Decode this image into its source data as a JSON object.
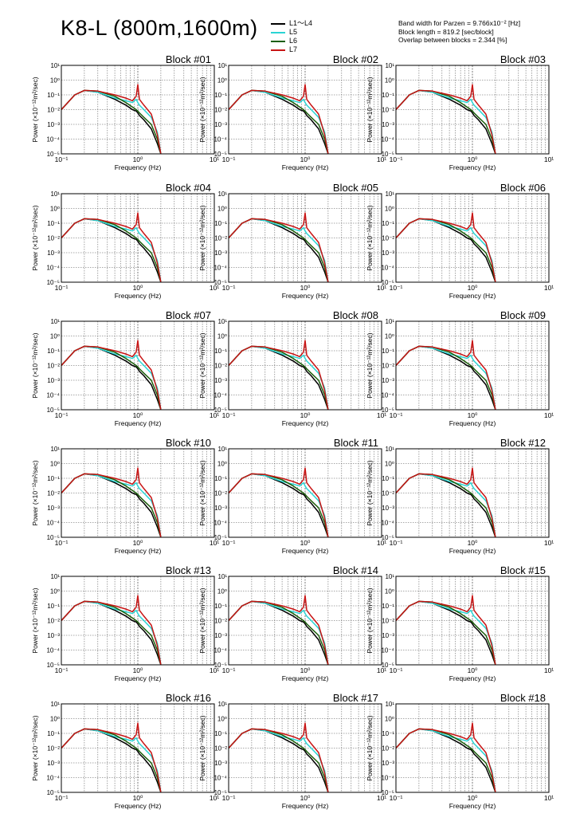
{
  "title": "K8-L (800m,1600m)",
  "legend": [
    {
      "label": "L1～L4",
      "color": "#000000"
    },
    {
      "label": "L5",
      "color": "#2ad4d4"
    },
    {
      "label": "L6",
      "color": "#1b5e0a"
    },
    {
      "label": "L7",
      "color": "#c81414"
    }
  ],
  "info": [
    "Band width for Parzen = 9.766x10⁻² [Hz]",
    "Block length = 819.2 [sec/block]",
    "Overlap between blocks = 2.344 [%]"
  ],
  "axis": {
    "xlabel": "Frequency (Hz)",
    "ylabel": "Power (×10⁻¹²m²/sec)",
    "xticks": [
      "10⁻¹",
      "10⁰",
      "10¹"
    ],
    "yticks": [
      "10¹",
      "10⁰",
      "10⁻¹",
      "10⁻²",
      "10⁻³",
      "10⁻⁴",
      "10⁻⁵"
    ]
  },
  "chart_data": {
    "type": "line",
    "xscale": "log",
    "yscale": "log",
    "xlim": [
      0.1,
      10
    ],
    "ylim": [
      1e-05,
      10
    ],
    "grid": true,
    "panel_titles": [
      "Block #01",
      "Block #02",
      "Block #03",
      "Block #04",
      "Block #05",
      "Block #06",
      "Block #07",
      "Block #08",
      "Block #09",
      "Block #10",
      "Block #11",
      "Block #12",
      "Block #13",
      "Block #14",
      "Block #15",
      "Block #16",
      "Block #17",
      "Block #18"
    ],
    "x": [
      0.1,
      0.15,
      0.2,
      0.3,
      0.5,
      0.7,
      0.85,
      0.95,
      1.0,
      1.05,
      1.2,
      1.5,
      1.8,
      2.0
    ],
    "series": [
      {
        "name": "L1～L4",
        "color": "#000000",
        "values": [
          0.01,
          0.1,
          0.2,
          0.15,
          0.05,
          0.02,
          0.01,
          0.008,
          0.006,
          0.004,
          0.002,
          0.0005,
          5e-05,
          1e-05
        ]
      },
      {
        "name": "L5",
        "color": "#2ad4d4",
        "values": [
          0.01,
          0.1,
          0.2,
          0.15,
          0.06,
          0.04,
          0.03,
          0.05,
          0.03,
          0.02,
          0.01,
          0.003,
          0.0003,
          1e-05
        ]
      },
      {
        "name": "L6",
        "color": "#1b5e0a",
        "values": [
          0.01,
          0.1,
          0.2,
          0.18,
          0.08,
          0.03,
          0.015,
          0.01,
          0.008,
          0.006,
          0.003,
          0.001,
          0.0001,
          1e-05
        ]
      },
      {
        "name": "L7",
        "color": "#c81414",
        "values": [
          0.01,
          0.1,
          0.2,
          0.18,
          0.1,
          0.06,
          0.04,
          0.08,
          0.5,
          0.05,
          0.02,
          0.005,
          0.0002,
          1e-05
        ]
      }
    ]
  }
}
